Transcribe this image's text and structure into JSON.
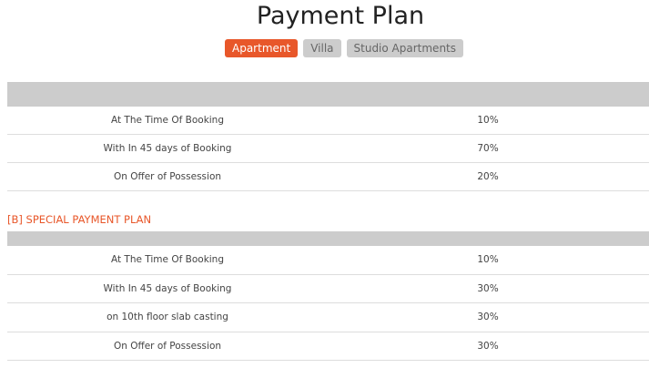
{
  "title": "Payment Plan",
  "tabs": [
    {
      "label": "Apartment",
      "active": true
    },
    {
      "label": "Villa",
      "active": false
    },
    {
      "label": "Studio Apartments",
      "active": false
    }
  ],
  "plan_a": {
    "rows": [
      [
        "At The Time Of Booking",
        "10%"
      ],
      [
        "With In 45 days of Booking",
        "70%"
      ],
      [
        "On Offer of Possession",
        "20%"
      ]
    ]
  },
  "plan_b": {
    "title": "[B] SPECIAL PAYMENT PLAN",
    "rows": [
      [
        "At The Time Of Booking",
        "10%"
      ],
      [
        "With In 45 days of Booking",
        "30%"
      ],
      [
        "on 10th floor slab casting",
        "30%"
      ],
      [
        "On Offer of Possession",
        "30%"
      ]
    ]
  },
  "colors": {
    "accent": "#e8572a",
    "header": "#cccccc"
  }
}
